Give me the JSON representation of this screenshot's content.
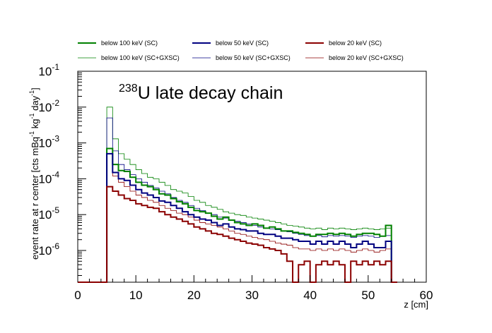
{
  "chart_data": {
    "type": "line",
    "title_sup": "238",
    "title_main": "U late decay chain",
    "xlabel": "z [cm]",
    "ylabel_parts": [
      "event rate at r center [cts mBq",
      "-1",
      " kg",
      "-1",
      " day",
      "-1",
      "]"
    ],
    "xlim": [
      0,
      60
    ],
    "ylim": [
      1.3e-07,
      0.1
    ],
    "yscale": "log",
    "bin_width": 1,
    "x_ticks": [
      0,
      10,
      20,
      30,
      40,
      50,
      60
    ],
    "x_tick_labels": [
      "0",
      "10",
      "20",
      "30",
      "40",
      "50",
      "60"
    ],
    "y_decades": [
      {
        "value": 1e-06,
        "base": "10",
        "exp": "-6"
      },
      {
        "value": 1e-05,
        "base": "10",
        "exp": "-5"
      },
      {
        "value": 0.0001,
        "base": "10",
        "exp": "-4"
      },
      {
        "value": 0.001,
        "base": "10",
        "exp": "-3"
      },
      {
        "value": 0.01,
        "base": "10",
        "exp": "-2"
      },
      {
        "value": 0.1,
        "base": "10",
        "exp": "-1"
      }
    ],
    "series": [
      {
        "name": "below 100 keV (SC)",
        "color": "#008000",
        "width": 2,
        "values": [
          0,
          0,
          0,
          0,
          0,
          0.0007,
          0.00025,
          0.00017,
          0.00016,
          0.00011,
          8e-05,
          6.6e-05,
          6e-05,
          5e-05,
          3.8e-05,
          3.5e-05,
          2.8e-05,
          2.3e-05,
          2e-05,
          1.6e-05,
          1.3e-05,
          1.2e-05,
          1.1e-05,
          9e-06,
          7.5e-06,
          8.5e-06,
          7e-06,
          6e-06,
          5.5e-06,
          5e-06,
          5.5e-06,
          5e-06,
          4.2e-06,
          4.5e-06,
          4e-06,
          3.5e-06,
          3.5e-06,
          3.2e-06,
          3e-06,
          2.8e-06,
          2.5e-06,
          2.8e-06,
          2.8e-06,
          3e-06,
          2.8e-06,
          3e-06,
          2.8e-06,
          2.5e-06,
          2.8e-06,
          3e-06,
          3e-06,
          2.8e-06,
          2.5e-06,
          5e-06,
          0
        ]
      },
      {
        "name": "below 50 keV (SC)",
        "color": "#000080",
        "width": 2,
        "values": [
          0,
          0,
          0,
          0,
          0,
          0.0005,
          0.00015,
          0.0001,
          9e-05,
          6.6e-05,
          5e-05,
          4e-05,
          3.5e-05,
          3e-05,
          2.4e-05,
          2.2e-05,
          1.8e-05,
          1.5e-05,
          1.2e-05,
          1e-05,
          8.5e-06,
          7.5e-06,
          7e-06,
          6e-06,
          5e-06,
          5.5e-06,
          4.5e-06,
          4e-06,
          3.8e-06,
          3.5e-06,
          3.5e-06,
          3e-06,
          2.8e-06,
          2.8e-06,
          2.5e-06,
          2.2e-06,
          2.2e-06,
          2e-06,
          1.8e-06,
          1.8e-06,
          1.5e-06,
          1.8e-06,
          1.5e-06,
          1.8e-06,
          1.5e-06,
          1.8e-06,
          1.5e-06,
          1.2e-06,
          1.5e-06,
          1.8e-06,
          1.5e-06,
          1.2e-06,
          1.2e-06,
          1.8e-06,
          0
        ]
      },
      {
        "name": "below 20 keV (SC)",
        "color": "#8b0000",
        "width": 2,
        "values": [
          0,
          0,
          0,
          0,
          0,
          6e-05,
          4.5e-05,
          3.5e-05,
          2.8e-05,
          2.5e-05,
          2e-05,
          1.8e-05,
          1.6e-05,
          1.5e-05,
          1.2e-05,
          1e-05,
          8.5e-06,
          7.5e-06,
          6.5e-06,
          5.5e-06,
          4.5e-06,
          4e-06,
          3.5e-06,
          3e-06,
          2.8e-06,
          2.5e-06,
          2.2e-06,
          2e-06,
          1.8e-06,
          1.6e-06,
          1.5e-06,
          1.4e-06,
          1.2e-06,
          1.1e-06,
          1e-06,
          8e-07,
          5e-07,
          0,
          4e-07,
          5e-07,
          0,
          4e-07,
          5e-07,
          4e-07,
          5e-07,
          4e-07,
          0,
          5e-07,
          4e-07,
          5e-07,
          4e-07,
          5e-07,
          4e-07,
          5e-07,
          0
        ]
      },
      {
        "name": "below 100 keV (SC+GXSC)",
        "color": "#008000",
        "width": 0.8,
        "values": [
          0,
          0,
          0,
          0,
          0,
          0.01,
          0.0013,
          0.0005,
          0.00035,
          0.00025,
          0.00018,
          0.00014,
          0.00011,
          0.0001,
          8e-05,
          6.5e-05,
          5e-05,
          4.5e-05,
          4e-05,
          3.2e-05,
          2.5e-05,
          2.2e-05,
          1.8e-05,
          1.6e-05,
          1.4e-05,
          1.2e-05,
          1.1e-05,
          1e-05,
          9.5e-06,
          8.5e-06,
          8e-06,
          7.5e-06,
          7e-06,
          6.5e-06,
          6e-06,
          5.5e-06,
          5e-06,
          4.8e-06,
          4.5e-06,
          4.2e-06,
          4e-06,
          4.2e-06,
          3.8e-06,
          4.2e-06,
          4e-06,
          4.2e-06,
          4e-06,
          3.8e-06,
          4e-06,
          4.2e-06,
          4e-06,
          3.8e-06,
          4e-06,
          4.2e-06,
          0
        ]
      },
      {
        "name": "below 50 keV (SC+GXSC)",
        "color": "#000080",
        "width": 0.8,
        "values": [
          0,
          0,
          0,
          0,
          0,
          0.005,
          0.0006,
          0.00025,
          0.00018,
          0.00013,
          0.0001,
          8e-05,
          6.5e-05,
          5.5e-05,
          4.5e-05,
          3.8e-05,
          3e-05,
          2.5e-05,
          2.2e-05,
          1.8e-05,
          1.5e-05,
          1.3e-05,
          1.1e-05,
          1e-05,
          8.5e-06,
          8e-06,
          7e-06,
          6.5e-06,
          6e-06,
          5.5e-06,
          5e-06,
          4.5e-06,
          4.2e-06,
          4e-06,
          3.8e-06,
          3.5e-06,
          3.3e-06,
          3e-06,
          2.8e-06,
          2.6e-06,
          2.5e-06,
          2.6e-06,
          2.4e-06,
          2.6e-06,
          2.5e-06,
          2.6e-06,
          2.5e-06,
          2.3e-06,
          2.5e-06,
          2.6e-06,
          2.5e-06,
          2.3e-06,
          2.5e-06,
          2.6e-06,
          0
        ]
      },
      {
        "name": "below 20 keV (SC+GXSC)",
        "color": "#8b0000",
        "width": 0.8,
        "values": [
          0,
          0,
          0,
          0,
          0,
          0.0007,
          0.00012,
          8e-05,
          6e-05,
          4.5e-05,
          3.5e-05,
          3e-05,
          2.5e-05,
          2.2e-05,
          1.8e-05,
          1.5e-05,
          1.3e-05,
          1.1e-05,
          1e-05,
          8.5e-06,
          7e-06,
          6e-06,
          5.5e-06,
          5e-06,
          4.5e-06,
          4e-06,
          3.5e-06,
          3e-06,
          2.8e-06,
          2.5e-06,
          2.3e-06,
          2.1e-06,
          2e-06,
          1.8e-06,
          1.6e-06,
          1.5e-06,
          1.4e-06,
          1.2e-06,
          1.1e-06,
          1.1e-06,
          1e-06,
          1.1e-06,
          1e-06,
          1.1e-06,
          1e-06,
          1.1e-06,
          1e-06,
          9e-07,
          1e-06,
          1.1e-06,
          1e-06,
          9e-07,
          1e-06,
          1.1e-06,
          0
        ]
      }
    ]
  }
}
